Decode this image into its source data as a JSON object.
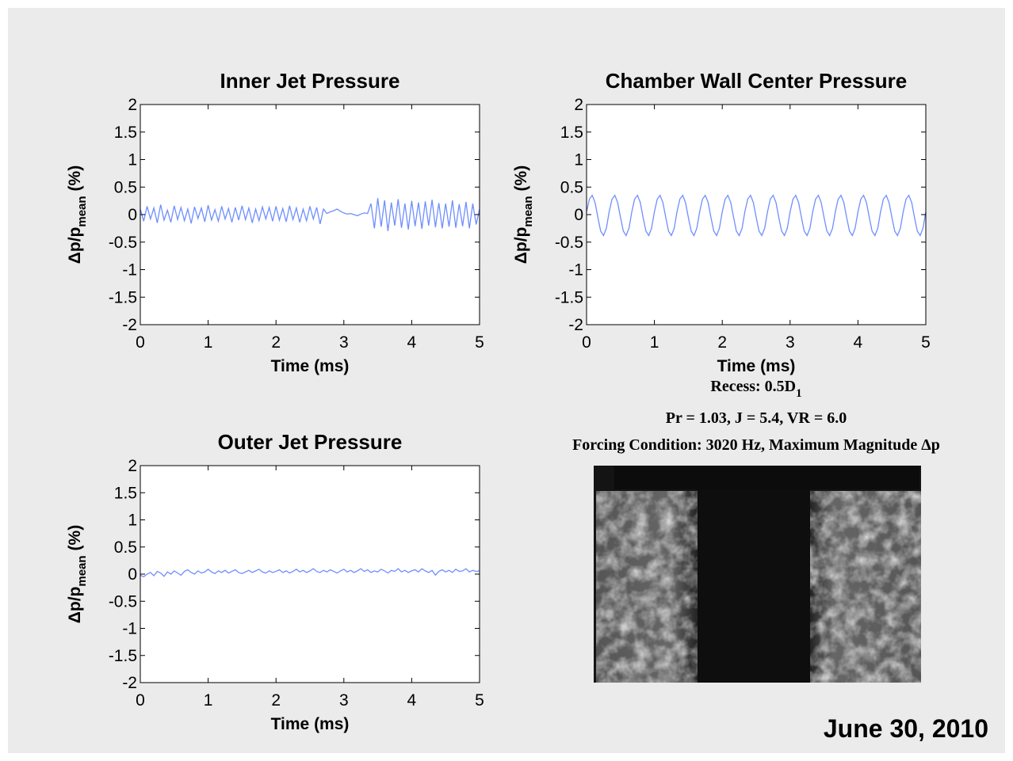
{
  "chart_data": [
    {
      "type": "line",
      "title": "Inner Jet Pressure",
      "xlabel": "Time (ms)",
      "ylabel": [
        "Δp/p",
        "mean",
        "(%)"
      ],
      "xlim": [
        0,
        5
      ],
      "xticks": [
        0,
        1,
        2,
        3,
        4,
        5
      ],
      "ylim": [
        -2,
        2
      ],
      "yticks": [
        -2,
        -1.5,
        -1,
        -0.5,
        0,
        0.5,
        1,
        1.5,
        2
      ],
      "grid": false,
      "x": [
        0,
        0.05,
        0.1,
        0.15,
        0.2,
        0.25,
        0.3,
        0.35,
        0.4,
        0.45,
        0.5,
        0.55,
        0.6,
        0.65,
        0.7,
        0.75,
        0.8,
        0.85,
        0.9,
        0.95,
        1,
        1.05,
        1.1,
        1.15,
        1.2,
        1.25,
        1.3,
        1.35,
        1.4,
        1.45,
        1.5,
        1.55,
        1.6,
        1.65,
        1.7,
        1.75,
        1.8,
        1.85,
        1.9,
        1.95,
        2,
        2.05,
        2.1,
        2.15,
        2.2,
        2.25,
        2.3,
        2.35,
        2.4,
        2.45,
        2.5,
        2.55,
        2.6,
        2.65,
        2.7,
        2.75,
        2.8,
        2.85,
        2.9,
        2.95,
        3,
        3.05,
        3.1,
        3.15,
        3.2,
        3.25,
        3.3,
        3.35,
        3.4,
        3.45,
        3.5,
        3.55,
        3.6,
        3.65,
        3.7,
        3.75,
        3.8,
        3.85,
        3.9,
        3.95,
        4,
        4.05,
        4.1,
        4.15,
        4.2,
        4.25,
        4.3,
        4.35,
        4.4,
        4.45,
        4.5,
        4.55,
        4.6,
        4.65,
        4.7,
        4.75,
        4.8,
        4.85,
        4.9,
        4.95,
        5
      ],
      "series": [
        {
          "color": "#6f8fff",
          "values": [
            0.1,
            -0.12,
            0.15,
            -0.08,
            0.12,
            -0.15,
            0.18,
            -0.1,
            0.08,
            -0.14,
            0.16,
            -0.09,
            0.13,
            -0.11,
            0.1,
            -0.16,
            0.14,
            -0.07,
            0.12,
            -0.13,
            0.17,
            -0.1,
            0.09,
            -0.12,
            0.15,
            -0.08,
            0.11,
            -0.14,
            0.13,
            -0.1,
            0.16,
            -0.09,
            0.12,
            -0.15,
            0.1,
            -0.11,
            0.14,
            -0.08,
            0.13,
            -0.12,
            0.15,
            -0.1,
            0.11,
            -0.13,
            0.16,
            -0.09,
            0.12,
            -0.14,
            0.1,
            -0.11,
            0.15,
            -0.08,
            0.13,
            -0.17,
            0.1,
            0.02,
            0.05,
            0.07,
            0.1,
            0.06,
            0.03,
            0.01,
            0.02,
            0.0,
            -0.02,
            0.01,
            0.03,
            0.02,
            0.2,
            -0.25,
            0.3,
            -0.22,
            0.26,
            -0.3,
            0.22,
            -0.2,
            0.28,
            -0.24,
            0.2,
            -0.27,
            0.25,
            -0.21,
            0.22,
            -0.26,
            0.24,
            -0.2,
            0.27,
            -0.23,
            0.21,
            -0.25,
            0.2,
            -0.22,
            0.26,
            -0.24,
            0.19,
            -0.21,
            0.23,
            -0.25,
            0.2,
            -0.18,
            0.1
          ]
        }
      ]
    },
    {
      "type": "line",
      "title": "Chamber Wall Center Pressure",
      "xlabel": "Time (ms)",
      "ylabel": [
        "Δp/p",
        "mean",
        "(%)"
      ],
      "xlim": [
        0,
        5
      ],
      "xticks": [
        0,
        1,
        2,
        3,
        4,
        5
      ],
      "ylim": [
        -2,
        2
      ],
      "yticks": [
        -2,
        -1.5,
        -1,
        -0.5,
        0,
        0.5,
        1,
        1.5,
        2
      ],
      "grid": false,
      "x": [
        0,
        0.042,
        0.083,
        0.125,
        0.167,
        0.208,
        0.25,
        0.292,
        0.333,
        0.375,
        0.417,
        0.458,
        0.5,
        0.542,
        0.583,
        0.625,
        0.667,
        0.708,
        0.75,
        0.792,
        0.833,
        0.875,
        0.917,
        0.958,
        1,
        1.042,
        1.083,
        1.125,
        1.167,
        1.208,
        1.25,
        1.292,
        1.333,
        1.375,
        1.417,
        1.458,
        1.5,
        1.542,
        1.583,
        1.625,
        1.667,
        1.708,
        1.75,
        1.792,
        1.833,
        1.875,
        1.917,
        1.958,
        2,
        2.042,
        2.083,
        2.125,
        2.167,
        2.208,
        2.25,
        2.292,
        2.333,
        2.375,
        2.417,
        2.458,
        2.5,
        2.542,
        2.583,
        2.625,
        2.667,
        2.708,
        2.75,
        2.792,
        2.833,
        2.875,
        2.917,
        2.958,
        3,
        3.042,
        3.083,
        3.125,
        3.167,
        3.208,
        3.25,
        3.292,
        3.333,
        3.375,
        3.417,
        3.458,
        3.5,
        3.542,
        3.583,
        3.625,
        3.667,
        3.708,
        3.75,
        3.792,
        3.833,
        3.875,
        3.917,
        3.958,
        4,
        4.042,
        4.083,
        4.125,
        4.167,
        4.208,
        4.25,
        4.292,
        4.333,
        4.375,
        4.417,
        4.458,
        4.5,
        4.542,
        4.583,
        4.625,
        4.667,
        4.708,
        4.75,
        4.792,
        4.833,
        4.875,
        4.917,
        4.958,
        5
      ],
      "series": [
        {
          "color": "#6f8fff",
          "values": [
            0.05,
            0.28,
            0.35,
            0.22,
            -0.05,
            -0.3,
            -0.38,
            -0.25,
            0.05,
            0.28,
            0.35,
            0.22,
            -0.05,
            -0.3,
            -0.38,
            -0.25,
            0.05,
            0.28,
            0.35,
            0.22,
            -0.05,
            -0.3,
            -0.38,
            -0.25,
            0.05,
            0.28,
            0.35,
            0.22,
            -0.05,
            -0.3,
            -0.38,
            -0.25,
            0.05,
            0.28,
            0.35,
            0.22,
            -0.05,
            -0.3,
            -0.38,
            -0.25,
            0.05,
            0.28,
            0.35,
            0.22,
            -0.05,
            -0.3,
            -0.38,
            -0.25,
            0.05,
            0.28,
            0.35,
            0.22,
            -0.05,
            -0.3,
            -0.38,
            -0.25,
            0.05,
            0.28,
            0.35,
            0.22,
            -0.05,
            -0.3,
            -0.38,
            -0.25,
            0.05,
            0.28,
            0.35,
            0.22,
            -0.05,
            -0.3,
            -0.38,
            -0.25,
            0.05,
            0.28,
            0.35,
            0.22,
            -0.05,
            -0.3,
            -0.38,
            -0.25,
            0.05,
            0.28,
            0.35,
            0.22,
            -0.05,
            -0.3,
            -0.38,
            -0.25,
            0.05,
            0.28,
            0.35,
            0.22,
            -0.05,
            -0.3,
            -0.38,
            -0.25,
            0.05,
            0.28,
            0.35,
            0.22,
            -0.05,
            -0.3,
            -0.38,
            -0.25,
            0.05,
            0.28,
            0.35,
            0.22,
            -0.05,
            -0.3,
            -0.38,
            -0.25,
            0.05,
            0.28,
            0.35,
            0.22,
            -0.05,
            -0.3,
            -0.38,
            -0.25,
            0.05
          ]
        }
      ]
    },
    {
      "type": "line",
      "title": "Outer Jet Pressure",
      "xlabel": "Time (ms)",
      "ylabel": [
        "Δp/p",
        "mean",
        "(%)"
      ],
      "xlim": [
        0,
        5
      ],
      "xticks": [
        0,
        1,
        2,
        3,
        4,
        5
      ],
      "ylim": [
        -2,
        2
      ],
      "yticks": [
        -2,
        -1.5,
        -1,
        -0.5,
        0,
        0.5,
        1,
        1.5,
        2
      ],
      "grid": false,
      "x": [
        0,
        0.05,
        0.1,
        0.15,
        0.2,
        0.25,
        0.3,
        0.35,
        0.4,
        0.45,
        0.5,
        0.55,
        0.6,
        0.65,
        0.7,
        0.75,
        0.8,
        0.85,
        0.9,
        0.95,
        1,
        1.05,
        1.1,
        1.15,
        1.2,
        1.25,
        1.3,
        1.35,
        1.4,
        1.45,
        1.5,
        1.55,
        1.6,
        1.65,
        1.7,
        1.75,
        1.8,
        1.85,
        1.9,
        1.95,
        2,
        2.05,
        2.1,
        2.15,
        2.2,
        2.25,
        2.3,
        2.35,
        2.4,
        2.45,
        2.5,
        2.55,
        2.6,
        2.65,
        2.7,
        2.75,
        2.8,
        2.85,
        2.9,
        2.95,
        3,
        3.05,
        3.1,
        3.15,
        3.2,
        3.25,
        3.3,
        3.35,
        3.4,
        3.45,
        3.5,
        3.55,
        3.6,
        3.65,
        3.7,
        3.75,
        3.8,
        3.85,
        3.9,
        3.95,
        4,
        4.05,
        4.1,
        4.15,
        4.2,
        4.25,
        4.3,
        4.35,
        4.4,
        4.45,
        4.5,
        4.55,
        4.6,
        4.65,
        4.7,
        4.75,
        4.8,
        4.85,
        4.9,
        4.95,
        5
      ],
      "series": [
        {
          "color": "#6f8fff",
          "values": [
            -0.02,
            -0.05,
            0.0,
            0.03,
            -0.03,
            0.05,
            0.02,
            -0.04,
            0.04,
            0.0,
            0.06,
            0.02,
            -0.02,
            0.05,
            0.08,
            0.03,
            0.0,
            0.06,
            0.02,
            0.04,
            0.09,
            0.04,
            0.01,
            0.06,
            0.03,
            0.07,
            0.02,
            0.05,
            0.08,
            0.03,
            0.01,
            0.04,
            0.07,
            0.03,
            0.06,
            0.09,
            0.04,
            0.02,
            0.06,
            0.03,
            0.05,
            0.08,
            0.03,
            0.06,
            0.02,
            0.05,
            0.09,
            0.04,
            0.07,
            0.03,
            0.06,
            0.1,
            0.05,
            0.03,
            0.07,
            0.04,
            0.08,
            0.05,
            0.02,
            0.06,
            0.09,
            0.04,
            0.07,
            0.03,
            0.06,
            0.1,
            0.05,
            0.08,
            0.03,
            0.06,
            0.04,
            0.09,
            0.06,
            0.02,
            0.07,
            0.05,
            0.1,
            0.04,
            0.07,
            0.03,
            0.06,
            0.08,
            0.04,
            0.1,
            0.06,
            0.03,
            0.07,
            -0.02,
            0.05,
            0.08,
            0.04,
            0.07,
            0.03,
            0.09,
            0.05,
            0.06,
            0.1,
            0.04,
            0.07,
            0.05,
            0.06
          ]
        }
      ]
    }
  ],
  "caption": {
    "recess": [
      "Recess: 0.5D",
      "1"
    ],
    "conditions": "Pr = 1.03, J = 5.4, VR = 6.0",
    "forcing": "Forcing Condition: 3020 Hz, Maximum Magnitude Δp"
  },
  "date": "June 30, 2010"
}
